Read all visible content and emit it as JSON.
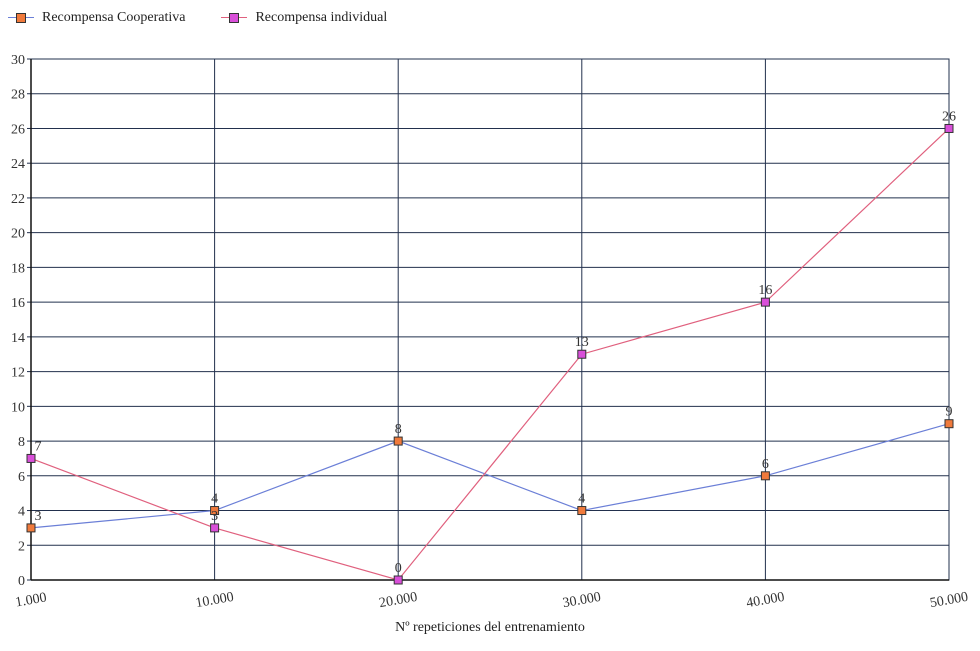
{
  "chart_data": {
    "type": "line",
    "title": "",
    "xlabel": "Nº repeticiones del entrenamiento",
    "ylabel": "",
    "categories": [
      "1.000",
      "10.000",
      "20.000",
      "30.000",
      "40.000",
      "50.000"
    ],
    "ylim": [
      0,
      30
    ],
    "yticks": [
      0,
      2,
      4,
      6,
      8,
      10,
      12,
      14,
      16,
      18,
      20,
      22,
      24,
      26,
      28,
      30
    ],
    "grid": true,
    "legend_position": "top-left",
    "series": [
      {
        "name": "Recompensa Cooperativa",
        "values": [
          3,
          4,
          8,
          4,
          6,
          9
        ],
        "line_color": "#6b7fd7",
        "marker_color": "#f07a3c"
      },
      {
        "name": "Recompensa individual",
        "values": [
          7,
          3,
          0,
          13,
          16,
          26
        ],
        "line_color": "#e0607e",
        "marker_color": "#d94fd9"
      }
    ]
  }
}
